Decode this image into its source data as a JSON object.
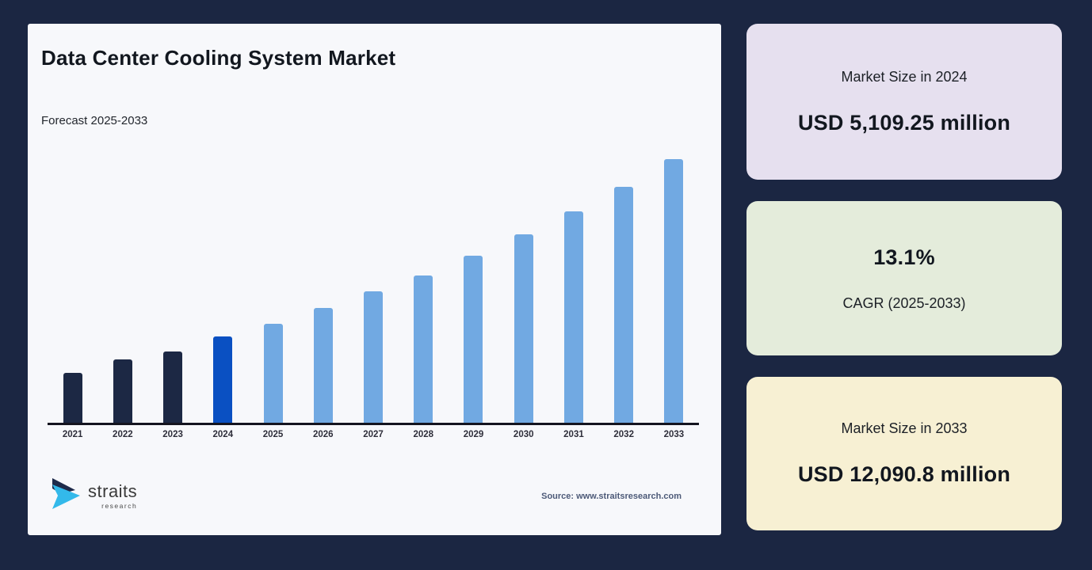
{
  "page": {
    "background": "#1b2642"
  },
  "chart_card": {
    "background": "#f7f8fb",
    "source": "Source: www.straitsresearch.com",
    "brand": {
      "name": "straits",
      "tagline": "research"
    }
  },
  "chart_data": {
    "type": "bar",
    "title": "Data Center Cooling System Market",
    "subtitle": "Forecast 2025-2033",
    "unit": "USD million",
    "categories": [
      "2021",
      "2022",
      "2023",
      "2024",
      "2025",
      "2026",
      "2027",
      "2028",
      "2029",
      "2030",
      "2031",
      "2032",
      "2033"
    ],
    "values": [
      3700,
      4210,
      4520,
      5109.25,
      5610,
      6230,
      6880,
      7500,
      8270,
      9110,
      10010,
      11000,
      12090.8
    ],
    "value_notes": "2024 and 2033 values shown on stat cards; other years estimated from bar heights",
    "ylim": [
      1730,
      12200
    ],
    "grid": false,
    "legend": false,
    "xlabel": "",
    "ylabel": "",
    "axis_color": "#14141f",
    "segments": {
      "historical_years": [
        "2021",
        "2022",
        "2023"
      ],
      "base_year": "2024",
      "forecast_years": [
        "2025",
        "2026",
        "2027",
        "2028",
        "2029",
        "2030",
        "2031",
        "2032",
        "2033"
      ]
    },
    "colors": {
      "historical": "#1c2844",
      "base": "#0a50c2",
      "forecast": "#71a9e2"
    }
  },
  "stats": [
    {
      "label": "Market Size in 2024",
      "value": "USD 5,109.25 million",
      "bg": "#e6e0ef"
    },
    {
      "label": "CAGR (2025-2033)",
      "value": "13.1%",
      "bg": "#e4ecdb"
    },
    {
      "label": "Market Size in 2033",
      "value": "USD 12,090.8 million",
      "bg": "#f7f0d3"
    }
  ]
}
